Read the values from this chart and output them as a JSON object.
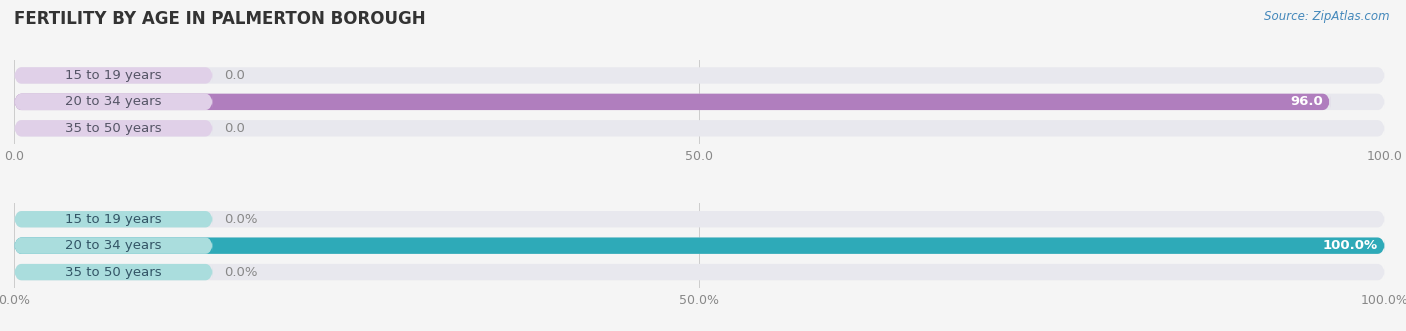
{
  "title": "FERTILITY BY AGE IN PALMERTON BOROUGH",
  "source": "Source: ZipAtlas.com",
  "top_chart": {
    "categories": [
      "15 to 19 years",
      "20 to 34 years",
      "35 to 50 years"
    ],
    "values": [
      0.0,
      96.0,
      0.0
    ],
    "xlim": [
      0,
      100
    ],
    "xticks": [
      0.0,
      50.0,
      100.0
    ],
    "bar_color": "#b07ebe",
    "bar_bg_color": "#e8e8ee",
    "label_bg_color": "#e0d0e8",
    "label_color": "#555566",
    "value_color_inside": "#ffffff",
    "value_color_outside": "#888888"
  },
  "bottom_chart": {
    "categories": [
      "15 to 19 years",
      "20 to 34 years",
      "35 to 50 years"
    ],
    "values": [
      0.0,
      100.0,
      0.0
    ],
    "xlim": [
      0,
      100
    ],
    "xticks": [
      0.0,
      50.0,
      100.0
    ],
    "bar_color": "#2eaab8",
    "bar_bg_color": "#e8e8ee",
    "label_bg_color": "#aadddd",
    "label_color": "#335566",
    "value_color_inside": "#ffffff",
    "value_color_outside": "#888888"
  },
  "background_color": "#f5f5f5",
  "title_fontsize": 12,
  "label_fontsize": 9.5,
  "value_fontsize": 9.5,
  "tick_fontsize": 9
}
